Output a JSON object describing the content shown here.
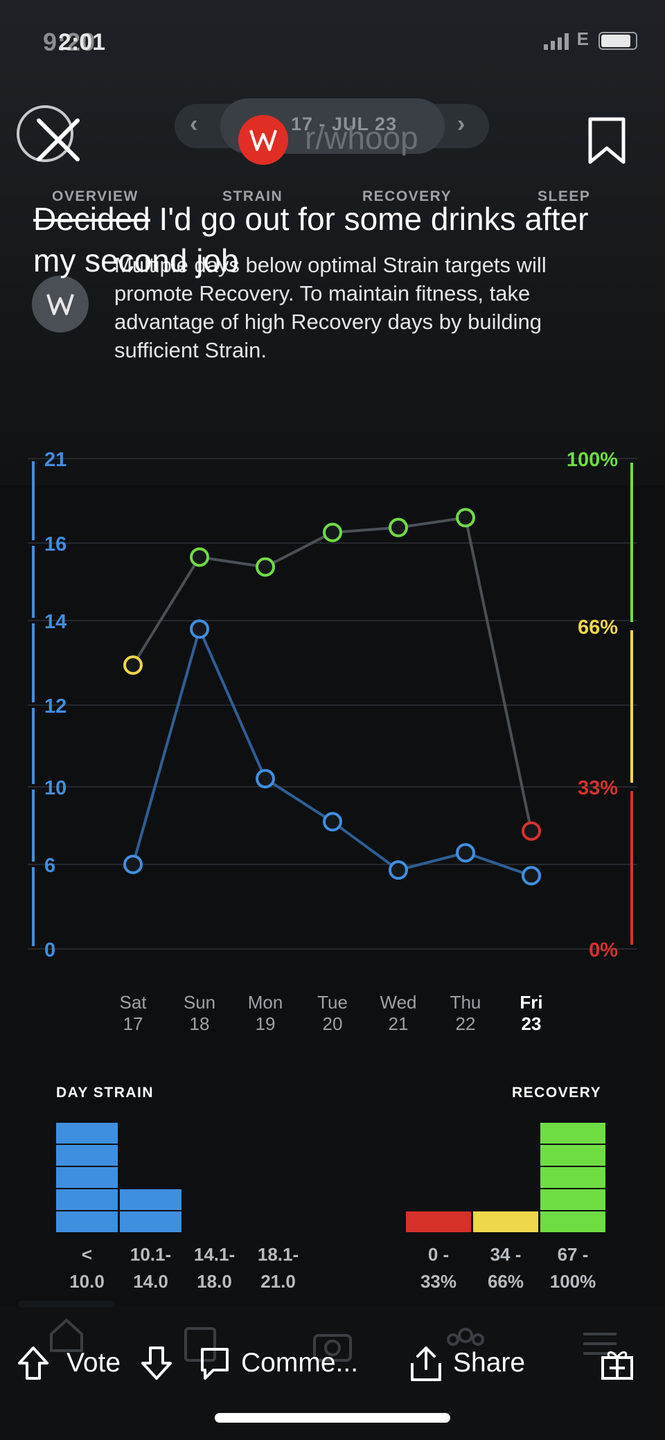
{
  "status_bar": {
    "time_ghost": "9:20",
    "time": "2:01",
    "carrier": "E"
  },
  "header": {
    "date_label": "17 - JUL 23",
    "subreddit": "r/whoop",
    "prev_icon": "chevron-left-icon",
    "next_icon": "chevron-right-icon",
    "close_icon": "close-icon",
    "bookmark_icon": "bookmark-icon"
  },
  "tabs": [
    "OVERVIEW",
    "STRAIN",
    "RECOVERY",
    "SLEEP"
  ],
  "post": {
    "title_struck": "Decided",
    "title_rest": " I'd go out for some drinks after my second job"
  },
  "coach": {
    "text": "Multiple days below optimal Strain targets will promote Recovery. To maintain fitness, take advantage of high Recovery days by building sufficient Strain."
  },
  "chart_data": {
    "type": "line",
    "categories": [
      "Sat 17",
      "Sun 18",
      "Mon 19",
      "Tue 20",
      "Wed 21",
      "Thu 22",
      "Fri 23"
    ],
    "day_names": [
      "Sat",
      "Sun",
      "Mon",
      "Tue",
      "Wed",
      "Thu",
      "Fri"
    ],
    "day_numbers": [
      "17",
      "18",
      "19",
      "20",
      "21",
      "22",
      "23"
    ],
    "highlighted_day": 6,
    "left_axis": {
      "ticks": [
        "21",
        "16",
        "14",
        "12",
        "10",
        "6",
        "0"
      ],
      "color": "#3f8fe0"
    },
    "right_axis": {
      "ticks": [
        "100%",
        "66%",
        "33%",
        "0%"
      ],
      "colors": [
        "#6fdc44",
        "#f0d64a",
        "#d6312b",
        "#d6312b"
      ]
    },
    "series": [
      {
        "values": [
          6.0,
          13.8,
          10.2,
          8.2,
          5.6,
          6.6,
          5.2
        ],
        "color": "#3f8fe0"
      },
      {
        "values": [
          58,
          80,
          78,
          85,
          86,
          88,
          24
        ],
        "point_colors": [
          "#f0d64a",
          "#6fdc44",
          "#6fdc44",
          "#6fdc44",
          "#6fdc44",
          "#6fdc44",
          "#d6312b"
        ]
      }
    ],
    "grid": true
  },
  "legend": {
    "strain_title": "DAY STRAIN",
    "recovery_title": "RECOVERY",
    "strain_bins": [
      {
        "label_top": "<",
        "label_bottom": "10.0",
        "count": 5
      },
      {
        "label_top": "10.1-",
        "label_bottom": "14.0",
        "count": 2
      },
      {
        "label_top": "14.1-",
        "label_bottom": "18.0",
        "count": 0
      },
      {
        "label_top": "18.1-",
        "label_bottom": "21.0",
        "count": 0
      }
    ],
    "recovery_bins": [
      {
        "label_top": "0 -",
        "label_bottom": "33%",
        "count": 1,
        "color": "#d6312b"
      },
      {
        "label_top": "34 -",
        "label_bottom": "66%",
        "count": 1,
        "color": "#f0d64a"
      },
      {
        "label_top": "67 -",
        "label_bottom": "100%",
        "count": 5,
        "color": "#6fdc44"
      }
    ],
    "strain_color": "#3f8fe0"
  },
  "actions": {
    "vote": "Vote",
    "comment": "Comme...",
    "share": "Share",
    "upvote_icon": "upvote-arrow-icon",
    "downvote_icon": "downvote-arrow-icon",
    "comment_icon": "comment-bubble-icon",
    "share_icon": "share-icon",
    "award_icon": "gift-icon"
  }
}
